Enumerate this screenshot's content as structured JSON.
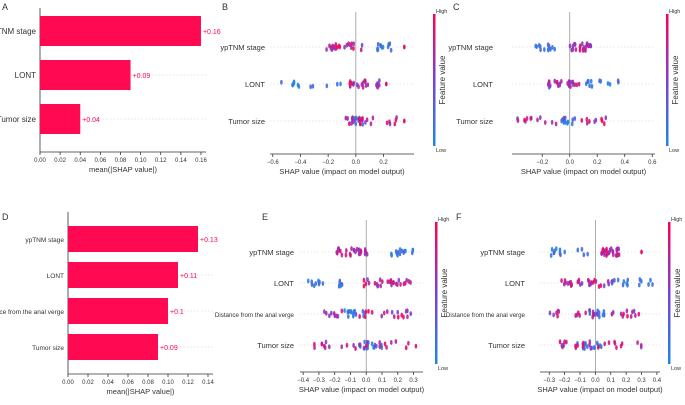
{
  "figure": {
    "page_width": 685,
    "page_height": 405
  },
  "colors": {
    "bar": "#ff0a52",
    "bar_label": "#ff0a52",
    "low": "#1e88e5",
    "mid": "#7b3fd4",
    "high": "#ff0052",
    "axis": "#333333",
    "zero_line": "#999999",
    "grid": "#cccccc"
  },
  "chart_data": [
    {
      "panel": "A",
      "type": "bar",
      "orientation": "horizontal",
      "categories": [
        "ypTNM stage",
        "LONT",
        "Tumor size"
      ],
      "values": [
        0.16,
        0.09,
        0.04
      ],
      "value_labels": [
        "+0.16",
        "+0.09",
        "+0.04"
      ],
      "xlabel": "mean(|SHAP value|)",
      "xlim": [
        0,
        0.165
      ],
      "xticks": [
        0.0,
        0.02,
        0.04,
        0.06,
        0.08,
        0.1,
        0.12,
        0.14,
        0.16
      ],
      "xtick_labels": [
        "0.00",
        "0.02",
        "0.04",
        "0.06",
        "0.08",
        "0.10",
        "0.12",
        "0.14",
        "0.16"
      ]
    },
    {
      "panel": "B",
      "type": "scatter",
      "subtype": "shap-beeswarm",
      "features": [
        "ypTNM stage",
        "LONT",
        "Tumor size"
      ],
      "xlabel": "SHAP value (impact on model output)",
      "xlim": [
        -0.62,
        0.42
      ],
      "xticks": [
        -0.6,
        -0.4,
        -0.2,
        0.0,
        0.2
      ],
      "xtick_labels": [
        "−0.6",
        "−0.4",
        "−0.2",
        "0.0",
        "0.2"
      ],
      "colorbar": {
        "label": "Feature value",
        "high": "High",
        "low": "Low"
      },
      "series": [
        {
          "name": "ypTNM stage",
          "low_range": [
            0.15,
            0.28
          ],
          "high_range": [
            -0.22,
            0.05
          ],
          "high_tail": [
            0.35
          ],
          "n": 36,
          "seed": 11
        },
        {
          "name": "LONT",
          "low_range": [
            -0.58,
            -0.06
          ],
          "high_range": [
            -0.05,
            0.17
          ],
          "high_tail": [
            0.22
          ],
          "n": 38,
          "seed": 23
        },
        {
          "name": "Tumor size",
          "low_range": [
            -0.03,
            0.05
          ],
          "high_range": [
            -0.1,
            0.3
          ],
          "high_tail": [
            0.35
          ],
          "n": 34,
          "seed": 37
        }
      ]
    },
    {
      "panel": "C",
      "type": "scatter",
      "subtype": "shap-beeswarm",
      "features": [
        "ypTNM stage",
        "LONT",
        "Tumor size"
      ],
      "xlabel": "SHAP value (impact on model output)",
      "xlim": [
        -0.42,
        0.62
      ],
      "xticks": [
        -0.2,
        0.0,
        0.2,
        0.4,
        0.6
      ],
      "xtick_labels": [
        "−0.2",
        "0.0",
        "0.2",
        "0.4",
        "0.6"
      ],
      "colorbar": {
        "label": "Feature value",
        "high": "High",
        "low": "Low"
      },
      "series": [
        {
          "name": "ypTNM stage",
          "low_range": [
            -0.25,
            -0.1
          ],
          "high_range": [
            0.0,
            0.18
          ],
          "high_tail": [],
          "n": 38,
          "seed": 41
        },
        {
          "name": "LONT",
          "low_range": [
            0.02,
            0.55
          ],
          "high_range": [
            -0.17,
            0.07
          ],
          "high_tail": [],
          "n": 38,
          "seed": 53
        },
        {
          "name": "Tumor size",
          "low_range": [
            -0.06,
            0.05
          ],
          "high_range": [
            -0.38,
            0.28
          ],
          "high_tail": [],
          "n": 34,
          "seed": 67
        }
      ]
    },
    {
      "panel": "D",
      "type": "bar",
      "orientation": "horizontal",
      "categories": [
        "ypTNM stage",
        "LONT",
        "Distance from the anal verge",
        "Tumor size"
      ],
      "values": [
        0.13,
        0.11,
        0.1,
        0.09
      ],
      "value_labels": [
        "+0.13",
        "+0.11",
        "+0.1",
        "+0.09"
      ],
      "xlabel": "mean(|SHAP value|)",
      "xlim": [
        0,
        0.145
      ],
      "xticks": [
        0.0,
        0.02,
        0.04,
        0.06,
        0.08,
        0.1,
        0.12,
        0.14
      ],
      "xtick_labels": [
        "0.00",
        "0.02",
        "0.04",
        "0.06",
        "0.08",
        "0.10",
        "0.12",
        "0.14"
      ]
    },
    {
      "panel": "E",
      "type": "scatter",
      "subtype": "shap-beeswarm",
      "features": [
        "ypTNM stage",
        "LONT",
        "Distance from the anal verge",
        "Tumor size"
      ],
      "xlabel": "SHAP value (impact on model output)",
      "xlim": [
        -0.42,
        0.36
      ],
      "xticks": [
        -0.4,
        -0.3,
        -0.2,
        -0.1,
        0.0,
        0.1,
        0.2,
        0.3
      ],
      "xtick_labels": [
        "−0.4",
        "−0.3",
        "−0.2",
        "−0.1",
        "0.0",
        "0.1",
        "0.2",
        "0.3"
      ],
      "colorbar": {
        "label": "Feature value",
        "high": "High",
        "low": "Low"
      },
      "series": [
        {
          "name": "ypTNM stage",
          "low_range": [
            0.15,
            0.3
          ],
          "high_range": [
            -0.2,
            0.02
          ],
          "high_tail": [],
          "n": 44,
          "seed": 71
        },
        {
          "name": "LONT",
          "low_range": [
            -0.38,
            -0.08
          ],
          "high_range": [
            -0.02,
            0.3
          ],
          "high_tail": [],
          "n": 44,
          "seed": 83
        },
        {
          "name": "Distance from the anal verge",
          "low_range": [
            -0.14,
            0.03
          ],
          "high_range": [
            -0.3,
            0.3
          ],
          "high_tail": [],
          "n": 42,
          "seed": 97
        },
        {
          "name": "Tumor size",
          "low_range": [
            -0.06,
            0.12
          ],
          "high_range": [
            -0.33,
            0.33
          ],
          "high_tail": [],
          "n": 40,
          "seed": 101
        }
      ]
    },
    {
      "panel": "F",
      "type": "scatter",
      "subtype": "shap-beeswarm",
      "features": [
        "ypTNM stage",
        "LONT",
        "Distance from the anal verge",
        "Tumor size"
      ],
      "xlabel": "SHAP value (impact on model output)",
      "xlim": [
        -0.36,
        0.42
      ],
      "xticks": [
        -0.3,
        -0.2,
        -0.1,
        0.0,
        0.1,
        0.2,
        0.3,
        0.4
      ],
      "xtick_labels": [
        "−0.3",
        "−0.2",
        "−0.1",
        "0.0",
        "0.1",
        "0.2",
        "0.3",
        "0.4"
      ],
      "colorbar": {
        "label": "Feature value",
        "high": "High",
        "low": "Low"
      },
      "series": [
        {
          "name": "ypTNM stage",
          "low_range": [
            -0.3,
            -0.05
          ],
          "high_range": [
            0.04,
            0.16
          ],
          "high_tail": [
            0.3
          ],
          "n": 42,
          "seed": 113
        },
        {
          "name": "LONT",
          "low_range": [
            0.1,
            0.38
          ],
          "high_range": [
            -0.22,
            0.12
          ],
          "high_tail": [],
          "n": 44,
          "seed": 127
        },
        {
          "name": "Distance from the anal verge",
          "low_range": [
            -0.05,
            0.08
          ],
          "high_range": [
            -0.3,
            0.3
          ],
          "high_tail": [],
          "n": 42,
          "seed": 131
        },
        {
          "name": "Tumor size",
          "low_range": [
            -0.12,
            0.05
          ],
          "high_range": [
            -0.24,
            0.3
          ],
          "high_tail": [],
          "n": 40,
          "seed": 139
        }
      ]
    }
  ]
}
